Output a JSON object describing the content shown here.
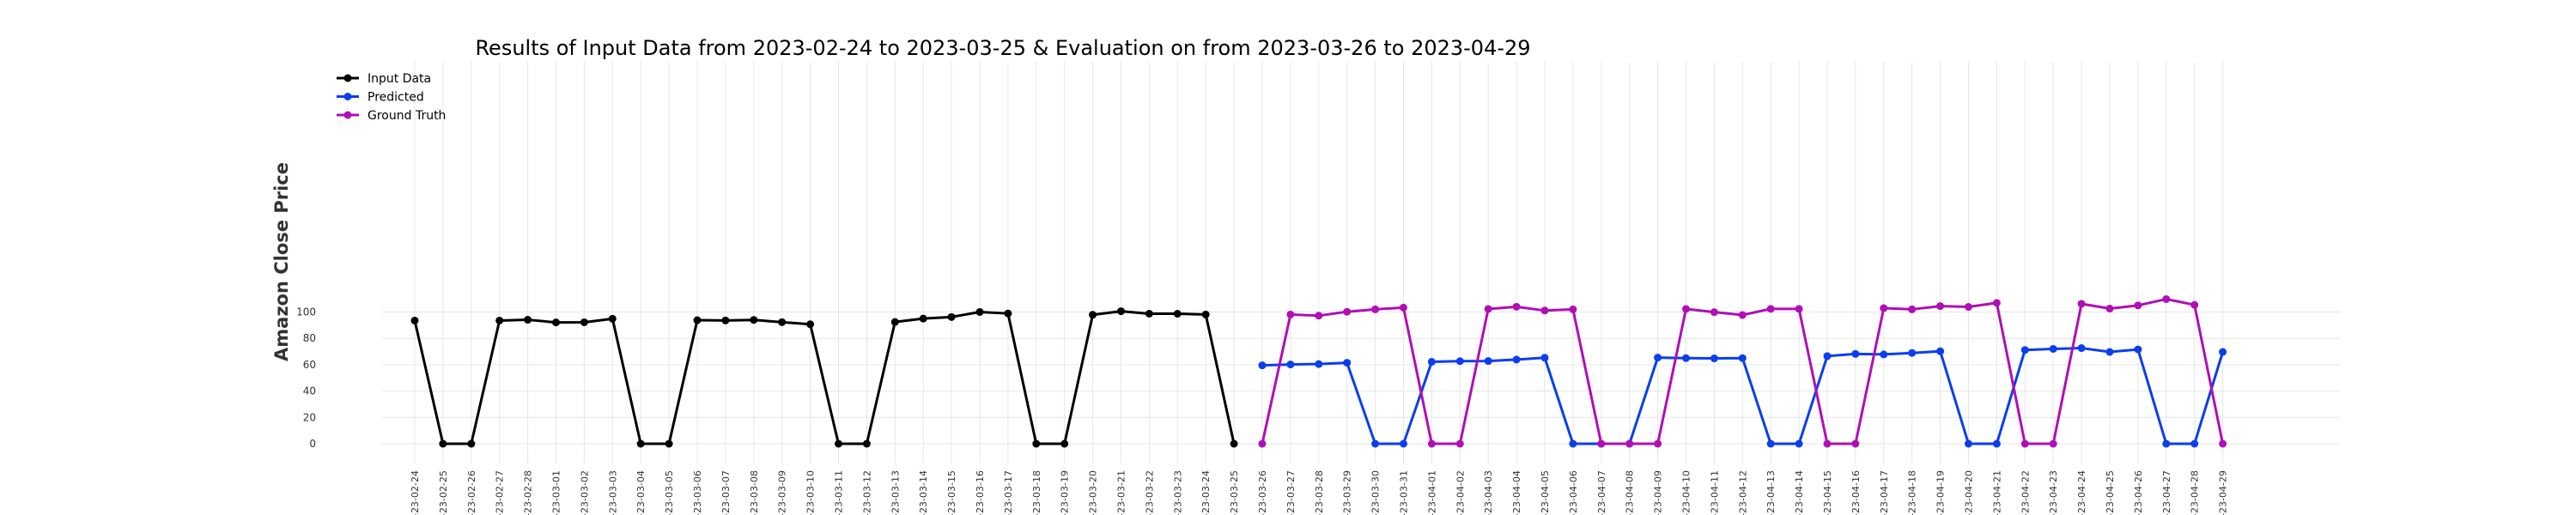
{
  "chart_data": {
    "type": "line",
    "title": "Results of Input Data from 2023-02-24 to 2023-03-25 & Evaluation on from 2023-03-26 to 2023-04-29",
    "ylabel": "Amazon Close Price",
    "xlabel": "",
    "ylim": [
      -5,
      115
    ],
    "yticks": [
      0,
      20,
      40,
      60,
      80,
      100
    ],
    "grid": true,
    "legend_position": "top-left",
    "categories": [
      "2023-02-24",
      "2023-02-25",
      "2023-02-26",
      "2023-02-27",
      "2023-02-28",
      "2023-03-01",
      "2023-03-02",
      "2023-03-03",
      "2023-03-04",
      "2023-03-05",
      "2023-03-06",
      "2023-03-07",
      "2023-03-08",
      "2023-03-09",
      "2023-03-10",
      "2023-03-11",
      "2023-03-12",
      "2023-03-13",
      "2023-03-14",
      "2023-03-15",
      "2023-03-16",
      "2023-03-17",
      "2023-03-18",
      "2023-03-19",
      "2023-03-20",
      "2023-03-21",
      "2023-03-22",
      "2023-03-23",
      "2023-03-24",
      "2023-03-25",
      "2023-03-26",
      "2023-03-27",
      "2023-03-28",
      "2023-03-29",
      "2023-03-30",
      "2023-03-31",
      "2023-04-01",
      "2023-04-02",
      "2023-04-03",
      "2023-04-04",
      "2023-04-05",
      "2023-04-06",
      "2023-04-07",
      "2023-04-08",
      "2023-04-09",
      "2023-04-10",
      "2023-04-11",
      "2023-04-12",
      "2023-04-13",
      "2023-04-14",
      "2023-04-15",
      "2023-04-16",
      "2023-04-17",
      "2023-04-18",
      "2023-04-19",
      "2023-04-20",
      "2023-04-21",
      "2023-04-22",
      "2023-04-23",
      "2023-04-24",
      "2023-04-25",
      "2023-04-26",
      "2023-04-27",
      "2023-04-28",
      "2023-04-29"
    ],
    "tick_labels": [
      "-23-02-24",
      "-23-02-25",
      "-23-02-26",
      "-23-02-27",
      "-23-02-28",
      "-23-03-01",
      "-23-03-02",
      "-23-03-03",
      "-23-03-04",
      "-23-03-05",
      "-23-03-06",
      "-23-03-07",
      "-23-03-08",
      "-23-03-09",
      "-23-03-10",
      "-23-03-11",
      "-23-03-12",
      "-23-03-13",
      "-23-03-14",
      "-23-03-15",
      "-23-03-16",
      "-23-03-17",
      "-23-03-18",
      "-23-03-19",
      "-23-03-20",
      "-23-03-21",
      "-23-03-22",
      "-23-03-23",
      "-23-03-24",
      "-23-03-25",
      "-23-03-26",
      "-23-03-27",
      "-23-03-28",
      "-23-03-29",
      "-23-03-30",
      "-23-03-31",
      "-23-04-01",
      "-23-04-02",
      "-23-04-03",
      "-23-04-04",
      "-23-04-05",
      "-23-04-06",
      "-23-04-07",
      "-23-04-08",
      "-23-04-09",
      "-23-04-10",
      "-23-04-11",
      "-23-04-12",
      "-23-04-13",
      "-23-04-14",
      "-23-04-15",
      "-23-04-16",
      "-23-04-17",
      "-23-04-18",
      "-23-04-19",
      "-23-04-20",
      "-23-04-21",
      "-23-04-22",
      "-23-04-23",
      "-23-04-24",
      "-23-04-25",
      "-23-04-26",
      "-23-04-27",
      "-23-04-28",
      "-23-04-29"
    ],
    "series": [
      {
        "name": "Input Data",
        "color": "#000000",
        "x": [
          "2023-02-24",
          "2023-02-25",
          "2023-02-26",
          "2023-02-27",
          "2023-02-28",
          "2023-03-01",
          "2023-03-02",
          "2023-03-03",
          "2023-03-04",
          "2023-03-05",
          "2023-03-06",
          "2023-03-07",
          "2023-03-08",
          "2023-03-09",
          "2023-03-10",
          "2023-03-11",
          "2023-03-12",
          "2023-03-13",
          "2023-03-14",
          "2023-03-15",
          "2023-03-16",
          "2023-03-17",
          "2023-03-18",
          "2023-03-19",
          "2023-03-20",
          "2023-03-21",
          "2023-03-22",
          "2023-03-23",
          "2023-03-24",
          "2023-03-25"
        ],
        "values": [
          93.5,
          0,
          0,
          93.5,
          94.1,
          92.1,
          92.2,
          94.9,
          0,
          0,
          93.8,
          93.6,
          94.0,
          92.3,
          90.7,
          0,
          0,
          92.4,
          95.0,
          96.2,
          100.0,
          98.9,
          0,
          0,
          97.9,
          100.6,
          98.7,
          98.7,
          98.1,
          0
        ]
      },
      {
        "name": "Predicted",
        "color": "#0b3ef0",
        "x": [
          "2023-03-26",
          "2023-03-27",
          "2023-03-28",
          "2023-03-29",
          "2023-03-30",
          "2023-03-31",
          "2023-04-01",
          "2023-04-02",
          "2023-04-03",
          "2023-04-04",
          "2023-04-05",
          "2023-04-06",
          "2023-04-07",
          "2023-04-08",
          "2023-04-09",
          "2023-04-10",
          "2023-04-11",
          "2023-04-12",
          "2023-04-13",
          "2023-04-14",
          "2023-04-15",
          "2023-04-16",
          "2023-04-17",
          "2023-04-18",
          "2023-04-19",
          "2023-04-20",
          "2023-04-21",
          "2023-04-22",
          "2023-04-23",
          "2023-04-24",
          "2023-04-25",
          "2023-04-26",
          "2023-04-27",
          "2023-04-28",
          "2023-04-29"
        ],
        "values": [
          59.5,
          60.2,
          60.5,
          61.5,
          0,
          0,
          62.2,
          62.7,
          62.8,
          63.9,
          65.3,
          0,
          0,
          0,
          65.4,
          65.0,
          64.8,
          65.0,
          0,
          0,
          66.5,
          68.2,
          67.8,
          68.9,
          70.2,
          0,
          0,
          71.2,
          72.0,
          72.6,
          69.7,
          71.6,
          0,
          0,
          69.7
        ]
      },
      {
        "name": "Ground Truth",
        "color": "#b00fb5",
        "x": [
          "2023-03-26",
          "2023-03-27",
          "2023-03-28",
          "2023-03-29",
          "2023-03-30",
          "2023-03-31",
          "2023-04-01",
          "2023-04-02",
          "2023-04-03",
          "2023-04-04",
          "2023-04-05",
          "2023-04-06",
          "2023-04-07",
          "2023-04-08",
          "2023-04-09",
          "2023-04-10",
          "2023-04-11",
          "2023-04-12",
          "2023-04-13",
          "2023-04-14",
          "2023-04-15",
          "2023-04-16",
          "2023-04-17",
          "2023-04-18",
          "2023-04-19",
          "2023-04-20",
          "2023-04-21",
          "2023-04-22",
          "2023-04-23",
          "2023-04-24",
          "2023-04-25",
          "2023-04-26",
          "2023-04-27",
          "2023-04-28",
          "2023-04-29"
        ],
        "values": [
          0,
          98.1,
          97.2,
          100.2,
          102.0,
          103.3,
          0,
          0,
          102.3,
          104.0,
          101.1,
          102.0,
          0,
          0,
          0,
          102.3,
          99.9,
          97.7,
          102.4,
          102.4,
          0,
          0,
          102.9,
          102.0,
          104.5,
          103.9,
          106.9,
          0,
          0,
          106.2,
          102.6,
          105.0,
          109.8,
          105.4,
          0
        ]
      }
    ]
  }
}
